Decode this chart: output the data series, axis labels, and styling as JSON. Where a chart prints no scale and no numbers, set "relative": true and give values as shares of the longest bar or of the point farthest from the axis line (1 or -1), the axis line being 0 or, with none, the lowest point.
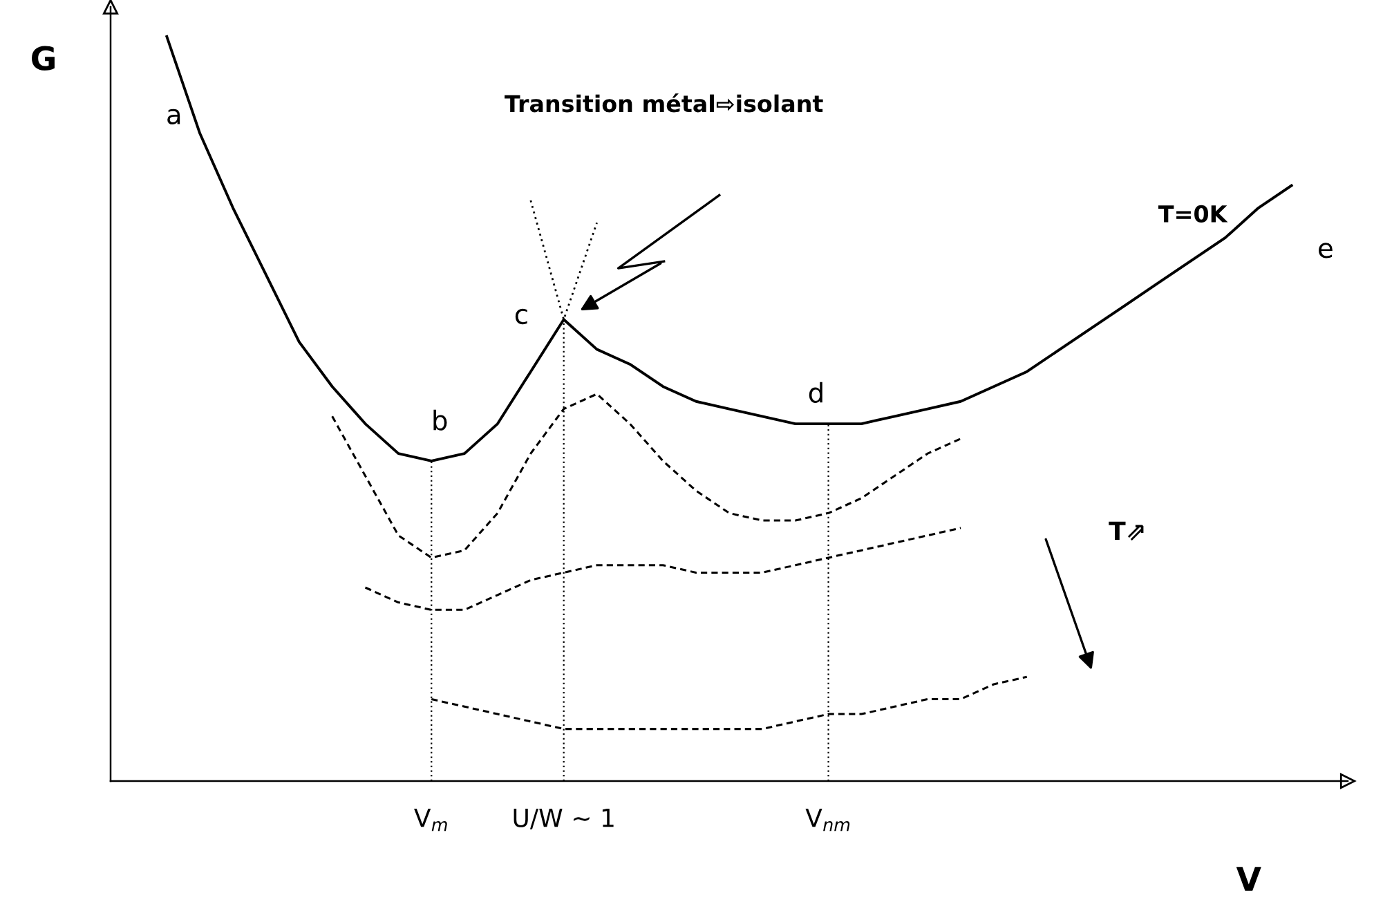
{
  "chart_data": {
    "type": "line",
    "relative": true,
    "xlabel": "V",
    "ylabel": "G",
    "categories": [
      null,
      null,
      null,
      null,
      null,
      null,
      null,
      null,
      "V$_{m}$",
      null,
      null,
      null,
      "U/W ~ 1",
      null,
      null,
      null,
      null,
      null,
      null,
      null,
      "V$_{nm}$",
      null,
      null,
      null,
      null,
      null,
      null,
      null,
      null,
      null,
      null,
      null,
      null,
      null,
      null
    ],
    "tick_labels": "x",
    "series": [
      {
        "color": "#000000",
        "line_style": "solid",
        "values": [
          1.0,
          0.87,
          0.77,
          0.68,
          0.59,
          0.53,
          0.48,
          0.44,
          0.43,
          0.44,
          0.48,
          0.55,
          0.62,
          0.58,
          0.56,
          0.53,
          0.51,
          0.5,
          0.49,
          0.48,
          0.48,
          0.48,
          0.49,
          0.5,
          0.51,
          0.53,
          0.55,
          0.58,
          0.61,
          0.64,
          0.67,
          0.7,
          0.73,
          0.77,
          0.8
        ]
      },
      {
        "color": "#000000",
        "line_style": "dotted",
        "values": [
          null,
          null,
          null,
          null,
          null,
          null,
          null,
          null,
          null,
          null,
          null,
          0.78,
          0.62,
          0.75,
          null,
          null,
          null,
          null,
          null,
          null,
          null,
          null,
          null,
          null,
          null,
          null,
          null,
          null,
          null,
          null,
          null,
          null,
          null,
          null,
          null
        ]
      },
      {
        "color": "#000000",
        "line_style": "dashed",
        "values": [
          null,
          null,
          null,
          null,
          null,
          0.49,
          0.41,
          0.33,
          0.3,
          0.31,
          0.36,
          0.44,
          0.5,
          0.52,
          0.48,
          0.43,
          0.39,
          0.36,
          0.35,
          0.35,
          0.36,
          0.38,
          0.41,
          0.44,
          0.46,
          null,
          null,
          null,
          null,
          null,
          null,
          null,
          null,
          null,
          null
        ]
      },
      {
        "color": "#000000",
        "line_style": "dashed",
        "values": [
          null,
          null,
          null,
          null,
          null,
          null,
          0.26,
          0.24,
          0.23,
          0.23,
          0.25,
          0.27,
          0.28,
          0.29,
          0.29,
          0.29,
          0.28,
          0.28,
          0.28,
          0.29,
          0.3,
          0.31,
          0.32,
          0.33,
          0.34,
          null,
          null,
          null,
          null,
          null,
          null,
          null,
          null,
          null,
          null
        ]
      },
      {
        "color": "#000000",
        "line_style": "dashed",
        "values": [
          null,
          null,
          null,
          null,
          null,
          null,
          null,
          null,
          0.11,
          0.1,
          0.09,
          0.08,
          0.07,
          0.07,
          0.07,
          0.07,
          0.07,
          0.07,
          0.07,
          0.08,
          0.09,
          0.09,
          0.1,
          0.11,
          0.11,
          0.13,
          0.14,
          null,
          null,
          null,
          null,
          null,
          null,
          null,
          null
        ]
      }
    ],
    "ref_lines": [
      {
        "axis": "x",
        "value": "V$_{m}$",
        "line_style": "dotted",
        "color": "#000000"
      },
      {
        "axis": "x",
        "value": "U/W ~ 1",
        "line_style": "dotted",
        "color": "#000000"
      },
      {
        "axis": "x",
        "value": "V$_{nm}$",
        "line_style": "dotted",
        "color": "#000000"
      }
    ],
    "annotations": [
      "a",
      "b",
      "c",
      "d",
      "e",
      "T=0K",
      "Transition métal⇨isolant",
      "T⇗"
    ]
  }
}
